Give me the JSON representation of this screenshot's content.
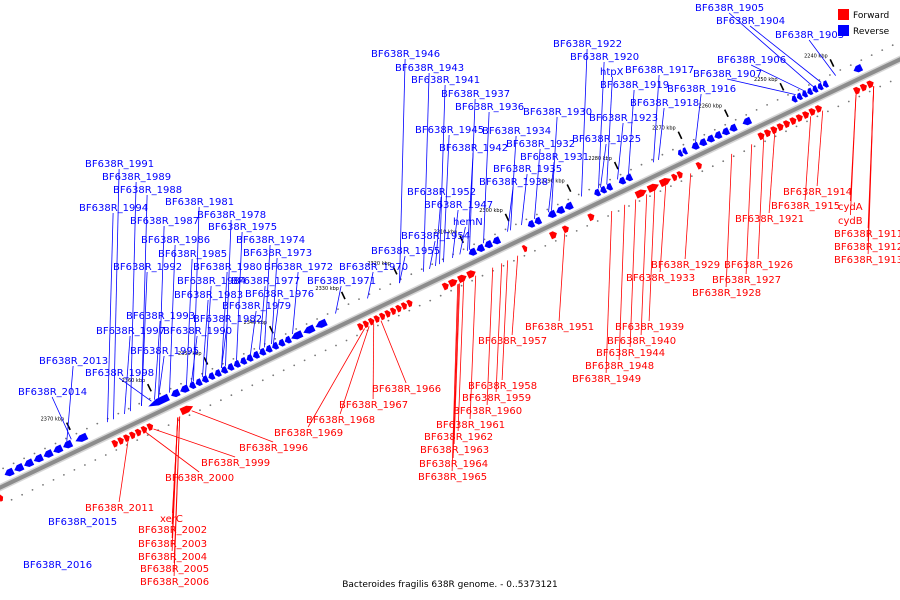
{
  "caption": "Bacteroides fragilis 638R genome. - 0..5373121",
  "legend": {
    "forward_label": "Forward",
    "reverse_label": "Reverse",
    "forward_color": "#ff0000",
    "reverse_color": "#0000ff"
  },
  "backbone_color": "#8c8c8c",
  "ticks": [
    "2240 kbp",
    "2250 kbp",
    "2260 kbp",
    "2270 kbp",
    "2280 kbp",
    "2290 kbp",
    "2300 kbp",
    "2310 kbp",
    "2320 kbp",
    "2330 kbp",
    "2340 kbp",
    "2350 kbp",
    "2360 kbp",
    "2370 kbp"
  ],
  "reverse_genes": [
    "BF638R_1903",
    "BF638R_1904",
    "BF638R_1905",
    "BF638R_1906",
    "BF638R_1907",
    "BF638R_1916",
    "BF638R_1917",
    "BF638R_1918",
    "BF638R_1919",
    "BF638R_1920",
    "BF638R_1922",
    "htpX",
    "BF638R_1923",
    "BF638R_1925",
    "BF638R_1930",
    "BF638R_1931",
    "BF638R_1932",
    "BF638R_1934",
    "BF638R_1935",
    "BF638R_1936",
    "BF638R_1937",
    "BF638R_1938",
    "BF638R_1941",
    "BF638R_1942",
    "BF638R_1943",
    "BF638R_1945",
    "BF638R_1946",
    "BF638R_1947",
    "BF638R_1952",
    "hemN",
    "BF638R_1954",
    "BF638R_1955",
    "BF638R_1970",
    "BF638R_1971",
    "BF638R_1972",
    "BF638R_1973",
    "BF638R_1974",
    "BF638R_1975",
    "BF638R_1976",
    "BF638R_1977",
    "BF638R_1978",
    "BF638R_1979",
    "BF638R_1980",
    "BF638R_1981",
    "BF638R_1982",
    "BF638R_1983",
    "BF638R_1984",
    "BF638R_1985",
    "BF638R_1986",
    "BF638R_1987",
    "BF638R_1988",
    "BF638R_1989",
    "BF638R_1990",
    "BF638R_1991",
    "BF638R_1992",
    "BF638R_1993",
    "BF638R_1994",
    "BF638R_1995",
    "BF638R_1997",
    "BF638R_1998",
    "BF638R_2013",
    "BF638R_2014",
    "BF638R_2015",
    "BF638R_2016"
  ],
  "forward_genes": [
    "BF638R_1914",
    "cydA",
    "BF638R_1915",
    "cydB",
    "BF638R_1911",
    "BF638R_1912",
    "BF638R_1913",
    "BF638R_1921",
    "BF638R_1926",
    "BF638R_1927",
    "BF638R_1928",
    "BF638R_1929",
    "BF638R_1933",
    "BF638R_1939",
    "BF638R_1940",
    "BF638R_1944",
    "BF638R_1948",
    "BF638R_1949",
    "BF638R_1951",
    "BF638R_1957",
    "BF638R_1958",
    "BF638R_1959",
    "BF638R_1960",
    "BF638R_1961",
    "BF638R_1962",
    "BF638R_1963",
    "BF638R_1964",
    "BF638R_1965",
    "BF638R_1966",
    "BF638R_1967",
    "BF638R_1968",
    "BF638R_1969",
    "BF638R_1996",
    "BF638R_1999",
    "BF638R_2000",
    "BF638R_2011",
    "xerC",
    "BF638R_2002",
    "BF638R_2003",
    "BF638R_2004",
    "BF638R_2005",
    "BF638R_2006"
  ]
}
